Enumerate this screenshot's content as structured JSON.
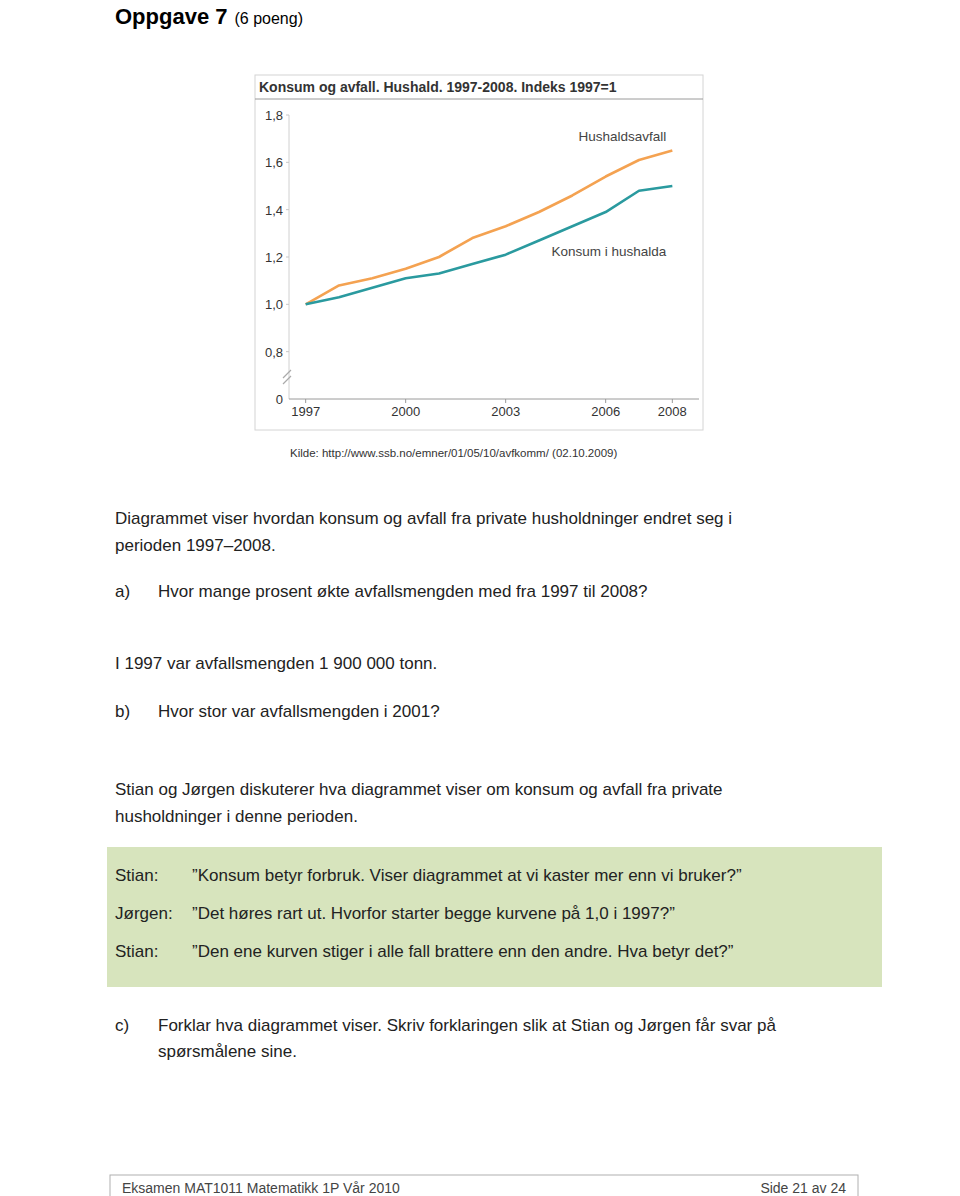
{
  "page": {
    "heading": {
      "title": "Oppgave 7",
      "points": "(6 poeng)"
    },
    "source": "Kilde: http://www.ssb.no/emner/01/05/10/avfkomm/ (02.10.2009)",
    "intro": [
      "Diagrammet viser hvordan konsum og avfall fra private husholdninger endret seg i",
      "perioden 1997–2008."
    ],
    "task_a": {
      "label": "a)",
      "lines": [
        "Hvor mange prosent økte avfallsmengden med fra 1997 til 2008?"
      ]
    },
    "given": [
      "I 1997 var avfallsmengden 1 900 000 tonn."
    ],
    "task_b": {
      "label": "b)",
      "lines": [
        "Hvor stor var avfallsmengden i 2001?"
      ]
    },
    "discussion": [
      "Stian og Jørgen diskuterer hva diagrammet viser om konsum og avfall fra private",
      "husholdninger i denne perioden."
    ],
    "dialogue": [
      {
        "speaker": "Stian:",
        "line": "”Konsum betyr forbruk. Viser diagrammet at vi kaster mer enn vi bruker?”"
      },
      {
        "speaker": "Jørgen:",
        "line": "”Det høres rart ut. Hvorfor starter begge kurvene på 1,0 i 1997?”"
      },
      {
        "speaker": "Stian:",
        "line": "”Den ene kurven stiger i alle fall brattere enn den andre. Hva betyr det?”"
      }
    ],
    "task_c": {
      "label": "c)",
      "lines": [
        "Forklar hva diagrammet viser. Skriv forklaringen slik at Stian og Jørgen får svar på",
        "spørsmålene sine."
      ]
    },
    "footer": {
      "left": "Eksamen MAT1011 Matematikk 1P Vår 2010",
      "right": "Side 21 av 24"
    }
  },
  "chart_data": {
    "type": "line",
    "title": "Konsum og avfall. Hushald. 1997-2008. Indeks 1997=1",
    "x": [
      1997,
      1998,
      1999,
      2000,
      2001,
      2002,
      2003,
      2004,
      2005,
      2006,
      2007,
      2008
    ],
    "series": [
      {
        "name": "Hushaldsavfall",
        "color": "#f4a251",
        "values": [
          1.0,
          1.08,
          1.11,
          1.15,
          1.2,
          1.28,
          1.33,
          1.39,
          1.46,
          1.54,
          1.61,
          1.65
        ]
      },
      {
        "name": "Konsum i hushalda",
        "color": "#2a9a9f",
        "values": [
          1.0,
          1.03,
          1.07,
          1.11,
          1.13,
          1.17,
          1.21,
          1.27,
          1.33,
          1.39,
          1.48,
          1.5
        ]
      }
    ],
    "xlim": [
      1996.5,
      2008.8
    ],
    "xticks": [
      1997,
      2000,
      2003,
      2006,
      2008
    ],
    "ylim": [
      0.6,
      1.8
    ],
    "yticks": [
      {
        "value": 0.8,
        "label": "0,8"
      },
      {
        "value": 1.0,
        "label": "1,0"
      },
      {
        "value": 1.2,
        "label": "1,2"
      },
      {
        "value": 1.4,
        "label": "1,4"
      },
      {
        "value": 1.6,
        "label": "1,6"
      },
      {
        "value": 1.8,
        "label": "1,8"
      }
    ],
    "axis_break_label": "0",
    "grid": false
  }
}
